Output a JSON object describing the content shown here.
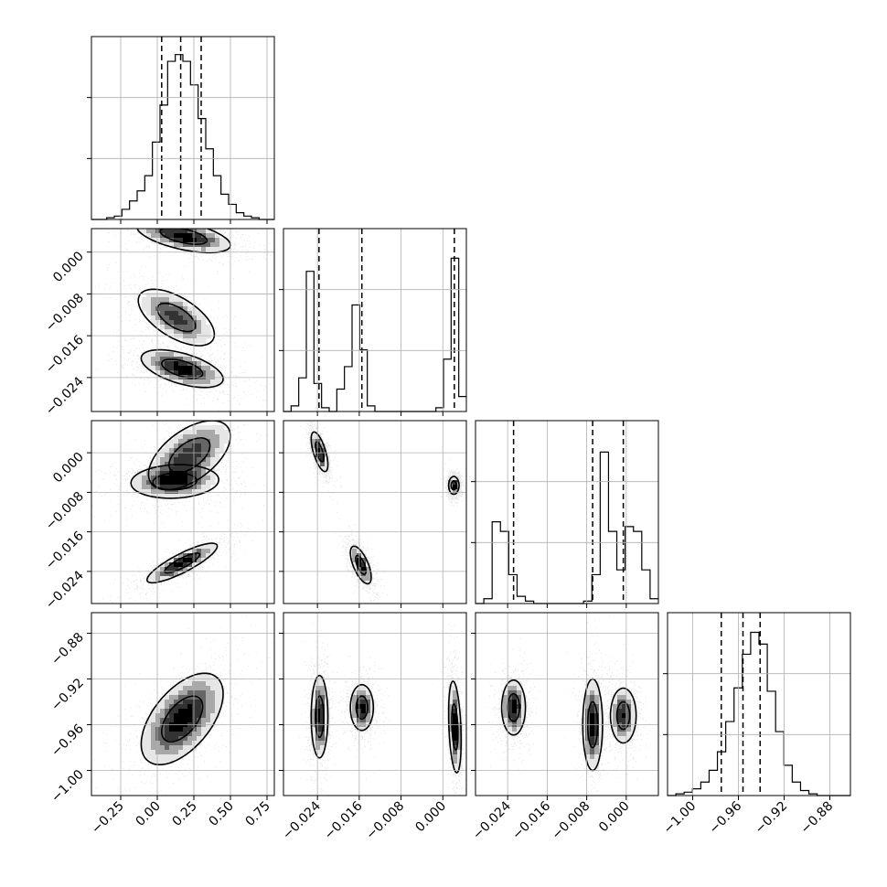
{
  "chart_data": {
    "type": "corner",
    "n_params": 4,
    "grid": true,
    "axis_titles": [],
    "params": [
      {
        "range": [
          -0.45,
          0.8
        ],
        "ticks": [
          -0.25,
          0.0,
          0.25,
          0.5,
          0.75
        ],
        "tick_labels": [
          "−0.25",
          "0.00",
          "0.25",
          "0.50",
          "0.75"
        ],
        "quantiles": [
          0.03,
          0.16,
          0.3
        ],
        "hist_bins": [
          0,
          0,
          1,
          2,
          6,
          11,
          17,
          26,
          46,
          68,
          94,
          98,
          94,
          80,
          60,
          42,
          26,
          15,
          9,
          4,
          2,
          1,
          0,
          0
        ],
        "hist_ymax": 100
      },
      {
        "range": [
          -0.0305,
          0.0045
        ],
        "ticks": [
          -0.024,
          -0.016,
          -0.008,
          0.0
        ],
        "tick_labels": [
          "−0.024",
          "−0.016",
          "−0.008",
          "0.000"
        ],
        "quantiles": [
          -0.0237,
          -0.0155,
          0.0022
        ],
        "hist_bins": [
          0,
          3,
          18,
          75,
          15,
          2,
          0,
          12,
          24,
          57,
          33,
          3,
          0,
          0,
          0,
          0,
          0,
          0,
          0,
          0,
          2,
          28,
          82,
          8
        ],
        "hist_ymax": 90
      },
      {
        "range": [
          -0.0305,
          0.0065
        ],
        "ticks": [
          -0.024,
          -0.016,
          -0.008,
          0.0
        ],
        "tick_labels": [
          "−0.024",
          "−0.016",
          "−0.008",
          "0.000"
        ],
        "quantiles": [
          -0.0228,
          -0.0068,
          -0.0006
        ],
        "hist_bins": [
          0,
          2,
          34,
          30,
          12,
          3,
          1,
          0,
          0,
          0,
          0,
          0,
          0,
          1,
          12,
          63,
          30,
          14,
          32,
          30,
          14,
          2
        ],
        "hist_ymax": 70
      },
      {
        "range": [
          -1.022,
          -0.862
        ],
        "ticks": [
          -1.0,
          -0.96,
          -0.92,
          -0.88
        ],
        "tick_labels": [
          "−1.00",
          "−0.96",
          "−0.92",
          "−0.88"
        ],
        "quantiles": [
          -0.975,
          -0.956,
          -0.941
        ],
        "hist_bins": [
          0,
          1,
          2,
          4,
          8,
          15,
          26,
          44,
          64,
          84,
          97,
          90,
          62,
          38,
          18,
          8,
          3,
          1,
          0,
          0,
          0,
          0
        ],
        "hist_ymax": 100
      }
    ],
    "blobs": [
      {
        "x": 0,
        "y": 1,
        "clusters": [
          {
            "cx": 0.18,
            "cy": 0.0031,
            "sx": 0.16,
            "sy": 0.0016,
            "rho": -0.55,
            "w": 1.0
          },
          {
            "cx": 0.13,
            "cy": -0.0125,
            "sx": 0.13,
            "sy": 0.0027,
            "rho": -0.6,
            "w": 0.75
          },
          {
            "cx": 0.17,
            "cy": -0.0223,
            "sx": 0.14,
            "sy": 0.0018,
            "rho": -0.55,
            "w": 1.0
          }
        ]
      },
      {
        "x": 0,
        "y": 2,
        "clusters": [
          {
            "cx": 0.22,
            "cy": -0.0005,
            "sx": 0.14,
            "sy": 0.0035,
            "rho": 0.55,
            "w": 0.8
          },
          {
            "cx": 0.12,
            "cy": -0.0058,
            "sx": 0.15,
            "sy": 0.0017,
            "rho": 0.1,
            "w": 0.8
          },
          {
            "cx": 0.17,
            "cy": -0.0223,
            "sx": 0.12,
            "sy": 0.002,
            "rho": 0.85,
            "w": 1.0
          }
        ]
      },
      {
        "x": 0,
        "y": 3,
        "clusters": [
          {
            "cx": 0.17,
            "cy": -0.955,
            "sx": 0.14,
            "sy": 0.02,
            "rho": 0.55,
            "w": 1.0
          }
        ]
      },
      {
        "x": 1,
        "y": 2,
        "clusters": [
          {
            "cx": -0.0236,
            "cy": 0.0002,
            "sx": 0.0008,
            "sy": 0.002,
            "rho": -0.65,
            "w": 1.0
          },
          {
            "cx": -0.0157,
            "cy": -0.0227,
            "sx": 0.001,
            "sy": 0.0019,
            "rho": -0.65,
            "w": 1.0
          },
          {
            "cx": 0.0021,
            "cy": -0.0066,
            "sx": 0.0005,
            "sy": 0.0009,
            "rho": 0.0,
            "w": 1.0
          }
        ]
      },
      {
        "x": 1,
        "y": 3,
        "clusters": [
          {
            "cx": -0.0236,
            "cy": -0.953,
            "sx": 0.0008,
            "sy": 0.018,
            "rho": 0.0,
            "w": 1.0
          },
          {
            "cx": -0.0155,
            "cy": -0.945,
            "sx": 0.0011,
            "sy": 0.01,
            "rho": 0.0,
            "w": 1.0
          },
          {
            "cx": 0.0023,
            "cy": -0.962,
            "sx": 0.0006,
            "sy": 0.02,
            "rho": -0.3,
            "w": 1.0
          }
        ]
      },
      {
        "x": 2,
        "y": 3,
        "clusters": [
          {
            "cx": -0.0228,
            "cy": -0.945,
            "sx": 0.0012,
            "sy": 0.012,
            "rho": 0.0,
            "w": 1.0
          },
          {
            "cx": -0.0068,
            "cy": -0.96,
            "sx": 0.001,
            "sy": 0.02,
            "rho": 0.0,
            "w": 1.0
          },
          {
            "cx": -0.0006,
            "cy": -0.952,
            "sx": 0.0013,
            "sy": 0.012,
            "rho": 0.0,
            "w": 0.9
          }
        ]
      }
    ]
  }
}
